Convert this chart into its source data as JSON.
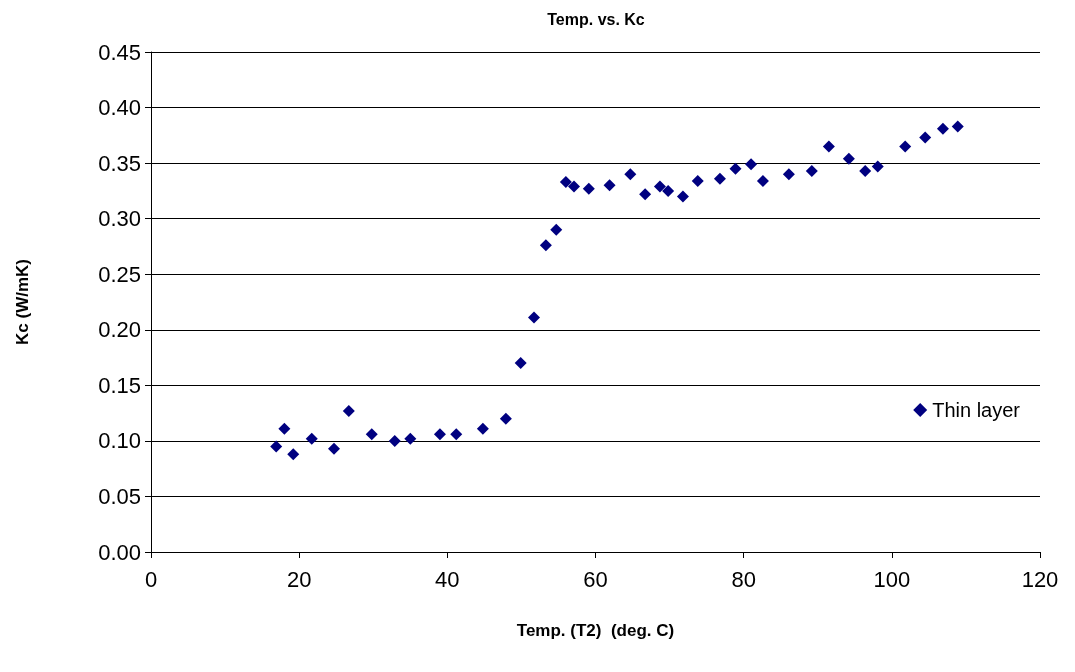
{
  "chart_data": {
    "type": "scatter",
    "title": "Temp. vs. Kc",
    "xlabel": "Temp. (T2)  (deg. C)",
    "ylabel": "Kc (W/mK)",
    "x": [
      16.9,
      18.0,
      19.2,
      21.7,
      24.7,
      26.7,
      29.8,
      32.9,
      35.0,
      39.0,
      41.2,
      44.8,
      47.9,
      49.9,
      51.7,
      53.3,
      54.7,
      56.0,
      57.1,
      59.1,
      61.9,
      64.7,
      66.7,
      68.7,
      69.8,
      71.8,
      73.8,
      76.8,
      78.9,
      81.0,
      82.6,
      86.1,
      89.2,
      91.5,
      94.2,
      96.4,
      98.1,
      101.8,
      104.5,
      106.9,
      108.9
    ],
    "series": [
      {
        "name": "Thin layer",
        "color": "#000080",
        "values": [
          0.095,
          0.111,
          0.088,
          0.102,
          0.093,
          0.127,
          0.106,
          0.1,
          0.102,
          0.106,
          0.106,
          0.111,
          0.12,
          0.17,
          0.211,
          0.276,
          0.29,
          0.333,
          0.329,
          0.327,
          0.33,
          0.34,
          0.322,
          0.329,
          0.325,
          0.32,
          0.334,
          0.336,
          0.345,
          0.349,
          0.334,
          0.34,
          0.343,
          0.365,
          0.354,
          0.343,
          0.347,
          0.365,
          0.373,
          0.381,
          0.383
        ]
      }
    ],
    "xlim": [
      0,
      120
    ],
    "xticks": [
      0,
      20,
      40,
      60,
      80,
      100,
      120
    ],
    "ylim": [
      0,
      0.45
    ],
    "yticks": [
      {
        "value": 0,
        "label": "0.00"
      },
      0.05,
      {
        "value": 0.1,
        "label": "0.10"
      },
      0.15,
      {
        "value": 0.2,
        "label": "0.20"
      },
      0.25,
      {
        "value": 0.3,
        "label": "0.30"
      },
      0.35,
      {
        "value": 0.4,
        "label": "0.40"
      },
      0.45
    ],
    "grid": "y",
    "legend": "right",
    "marker": "diamond"
  }
}
